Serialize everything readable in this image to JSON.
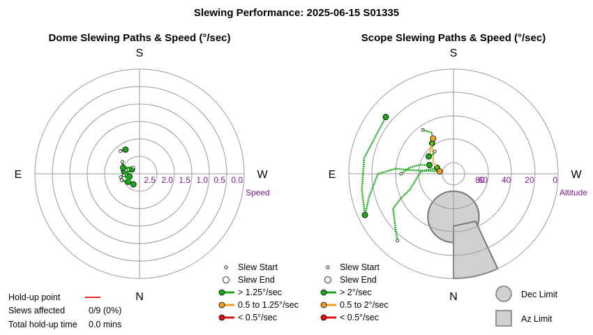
{
  "title": "Slewing Performance: 2025-06-15 S01335",
  "colors": {
    "fast": "#1aa81a",
    "medium": "#f0a020",
    "slow": "#dd1111",
    "ring": "#999999",
    "axis_label": "#7a1a8a",
    "limit_fill": "#d0d0d0",
    "holdup": "#ee2222"
  },
  "chart_data": [
    {
      "type": "scatter",
      "title": "Dome Slewing Paths & Speed (°/sec)",
      "compass": {
        "top": "S",
        "bottom": "N",
        "left": "E",
        "right": "W"
      },
      "radial_label": "Speed",
      "ring_labels": [
        "2.5",
        "2.0",
        "1.5",
        "1.0",
        "0.5",
        "0.0"
      ],
      "legend": [
        {
          "label": "Slew Start",
          "kind": "start"
        },
        {
          "label": "Slew End",
          "kind": "end"
        },
        {
          "label": "> 1.25°/sec",
          "kind": "fast"
        },
        {
          "label": "0.5 to 1.25°/sec",
          "kind": "medium"
        },
        {
          "label": "< 0.5°/sec",
          "kind": "slow"
        }
      ],
      "slews": [
        {
          "start": [
            2.55,
            -80
          ],
          "end": [
            2.4,
            -55
          ],
          "speed": "fast"
        },
        {
          "start": [
            2.75,
            -60
          ],
          "end": [
            2.45,
            -100
          ],
          "speed": "fast"
        },
        {
          "start": [
            2.7,
            -105
          ],
          "end": [
            2.6,
            -75
          ],
          "speed": "fast"
        },
        {
          "start": [
            2.6,
            -125
          ],
          "end": [
            2.45,
            -110
          ],
          "speed": "fast"
        },
        {
          "start": [
            2.5,
            -70
          ],
          "end": [
            2.75,
            -45
          ],
          "speed": "fast"
        },
        {
          "start": [
            2.65,
            -150
          ],
          "end": [
            2.55,
            -95
          ],
          "speed": "fast"
        },
        {
          "start": [
            2.2,
            -30
          ],
          "end": [
            2.15,
            -40
          ],
          "speed": "fast"
        }
      ]
    },
    {
      "type": "scatter",
      "title": "Scope Slewing Paths & Speed (°/sec)",
      "compass": {
        "top": "S",
        "bottom": "N",
        "left": "E",
        "right": "W"
      },
      "radial_label": "Altitude",
      "ring_labels": [
        "80",
        "60",
        "40",
        "20",
        "0"
      ],
      "legend": [
        {
          "label": "Slew Start",
          "kind": "start"
        },
        {
          "label": "Slew End",
          "kind": "end"
        },
        {
          "label": "> 2°/sec",
          "kind": "fast"
        },
        {
          "label": "0.5 to 2°/sec",
          "kind": "medium"
        },
        {
          "label": "< 0.5°/sec",
          "kind": "slow"
        }
      ],
      "limit_legend": [
        {
          "label": "Dec Limit",
          "kind": "dec"
        },
        {
          "label": "Az Limit",
          "kind": "az"
        }
      ],
      "slews": [
        {
          "path": [
            [
              68,
              -70
            ],
            [
              60,
              -75
            ],
            [
              52,
              -82
            ],
            [
              47,
              -88
            ],
            [
              45,
              -90
            ]
          ],
          "speed": "fast"
        },
        {
          "path": [
            [
              75,
              -70
            ],
            [
              62,
              -86
            ],
            [
              50,
              -110
            ],
            [
              40,
              -115
            ],
            [
              30,
              -120
            ],
            [
              20,
              -135
            ],
            [
              15,
              -140
            ]
          ],
          "speed": "fast"
        },
        {
          "path": [
            [
              14,
              -50
            ],
            [
              12,
              -80
            ],
            [
              10,
              -100
            ],
            [
              8,
              -110
            ],
            [
              6,
              -115
            ]
          ],
          "speed": "fast"
        },
        {
          "path": [
            [
              6,
              -115
            ],
            [
              15,
              -105
            ],
            [
              25,
              -90
            ],
            [
              40,
              -85
            ],
            [
              55,
              -85
            ],
            [
              78,
              -80
            ]
          ],
          "speed": "fast"
        },
        {
          "path": [
            [
              78,
              -80
            ],
            [
              70,
              -60
            ],
            [
              62,
              -40
            ],
            [
              58,
              -35
            ]
          ],
          "speed": "medium"
        },
        {
          "path": [
            [
              58,
              -35
            ],
            [
              54,
              -30
            ],
            [
              50,
              -28
            ],
            [
              44,
              -35
            ]
          ],
          "speed": "fast"
        },
        {
          "path": [
            [
              55,
              -30
            ],
            [
              60,
              -40
            ],
            [
              64,
              -55
            ]
          ],
          "speed": "medium"
        },
        {
          "path": [
            [
              64,
              -55
            ],
            [
              66,
              -45
            ],
            [
              65,
              -40
            ]
          ],
          "speed": "fast"
        }
      ],
      "dec_limit": {
        "center_alt": 53,
        "center_az": 0,
        "radius_deg": 22
      },
      "az_limit": {
        "az_from": 0,
        "az_to": 25,
        "alt_inner": 45,
        "alt_outer": 0
      }
    }
  ],
  "holdup": {
    "point_label": "Hold-up point",
    "slews_label": "Slews affected",
    "slews_value": "0/9 (0%)",
    "time_label": "Total hold-up time",
    "time_value": "0.0 mins"
  }
}
